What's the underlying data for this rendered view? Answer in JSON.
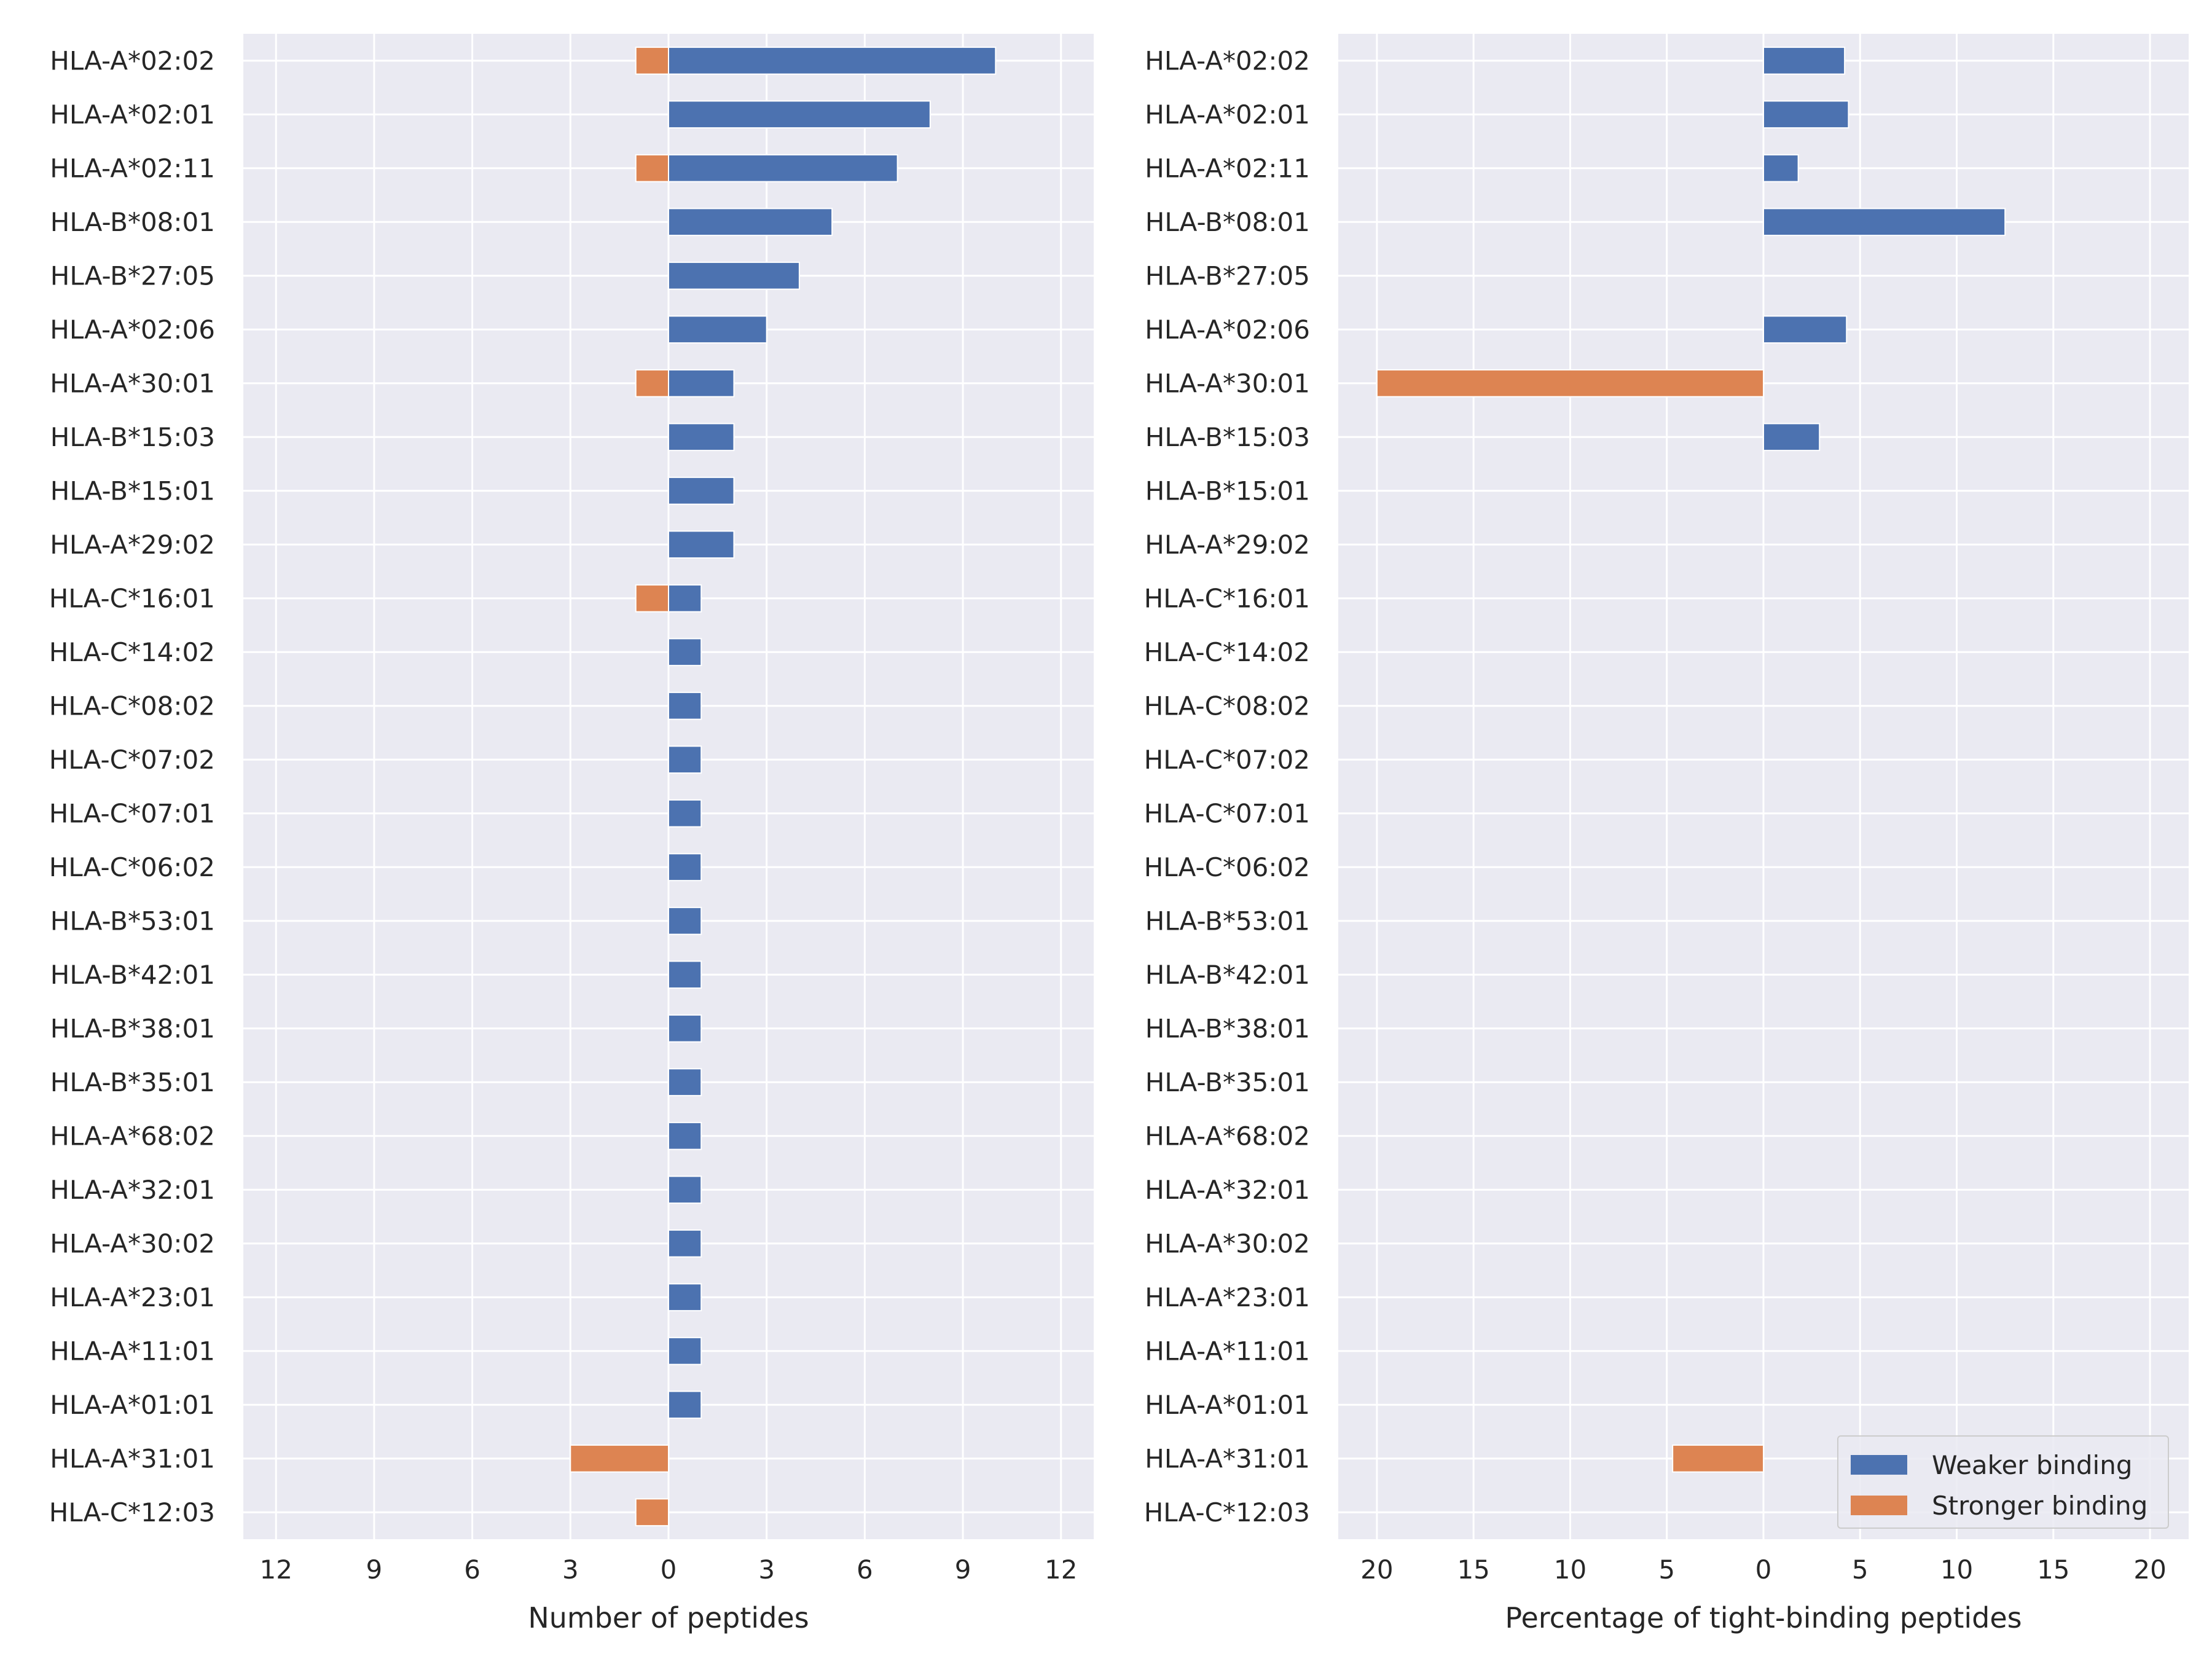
{
  "colors": {
    "weaker": "#4c72b0",
    "stronger": "#dd8452",
    "background": "#eaeaf2",
    "grid": "#ffffff"
  },
  "chart_data": [
    {
      "type": "bar",
      "orientation": "horizontal",
      "diverging": true,
      "xlabel": "Number of peptides",
      "ylabel": "",
      "title": "",
      "xlim": [
        -13,
        13
      ],
      "xticks": [
        -12,
        -9,
        -6,
        -3,
        0,
        3,
        6,
        9,
        12
      ],
      "xtick_labels": [
        "12",
        "9",
        "6",
        "3",
        "0",
        "3",
        "6",
        "9",
        "12"
      ],
      "grid": true,
      "categories": [
        "HLA-A*02:02",
        "HLA-A*02:01",
        "HLA-A*02:11",
        "HLA-B*08:01",
        "HLA-B*27:05",
        "HLA-A*02:06",
        "HLA-A*30:01",
        "HLA-B*15:03",
        "HLA-B*15:01",
        "HLA-A*29:02",
        "HLA-C*16:01",
        "HLA-C*14:02",
        "HLA-C*08:02",
        "HLA-C*07:02",
        "HLA-C*07:01",
        "HLA-C*06:02",
        "HLA-B*53:01",
        "HLA-B*42:01",
        "HLA-B*38:01",
        "HLA-B*35:01",
        "HLA-A*68:02",
        "HLA-A*32:01",
        "HLA-A*30:02",
        "HLA-A*23:01",
        "HLA-A*11:01",
        "HLA-A*01:01",
        "HLA-A*31:01",
        "HLA-C*12:03"
      ],
      "series": [
        {
          "name": "Weaker binding",
          "values": [
            10,
            8,
            7,
            5,
            4,
            3,
            2,
            2,
            2,
            2,
            1,
            1,
            1,
            1,
            1,
            1,
            1,
            1,
            1,
            1,
            1,
            1,
            1,
            1,
            1,
            1,
            0,
            0
          ]
        },
        {
          "name": "Stronger binding",
          "values": [
            -1,
            0,
            -1,
            0,
            0,
            0,
            -1,
            0,
            0,
            0,
            -1,
            0,
            0,
            0,
            0,
            0,
            0,
            0,
            0,
            0,
            0,
            0,
            0,
            0,
            0,
            0,
            -3,
            -1
          ]
        }
      ]
    },
    {
      "type": "bar",
      "orientation": "horizontal",
      "diverging": true,
      "xlabel": "Percentage of tight-binding peptides",
      "ylabel": "",
      "title": "",
      "xlim": [
        -22,
        22
      ],
      "xticks": [
        -20,
        -15,
        -10,
        -5,
        0,
        5,
        10,
        15,
        20
      ],
      "xtick_labels": [
        "20",
        "15",
        "10",
        "5",
        "0",
        "5",
        "10",
        "15",
        "20"
      ],
      "grid": true,
      "legend_position": "bottom-right",
      "categories": [
        "HLA-A*02:02",
        "HLA-A*02:01",
        "HLA-A*02:11",
        "HLA-B*08:01",
        "HLA-B*27:05",
        "HLA-A*02:06",
        "HLA-A*30:01",
        "HLA-B*15:03",
        "HLA-B*15:01",
        "HLA-A*29:02",
        "HLA-C*16:01",
        "HLA-C*14:02",
        "HLA-C*08:02",
        "HLA-C*07:02",
        "HLA-C*07:01",
        "HLA-C*06:02",
        "HLA-B*53:01",
        "HLA-B*42:01",
        "HLA-B*38:01",
        "HLA-B*35:01",
        "HLA-A*68:02",
        "HLA-A*32:01",
        "HLA-A*30:02",
        "HLA-A*23:01",
        "HLA-A*11:01",
        "HLA-A*01:01",
        "HLA-A*31:01",
        "HLA-C*12:03"
      ],
      "series": [
        {
          "name": "Weaker binding",
          "values": [
            4.2,
            4.4,
            1.8,
            12.5,
            0,
            4.3,
            0,
            2.9,
            0,
            0,
            0,
            0,
            0,
            0,
            0,
            0,
            0,
            0,
            0,
            0,
            0,
            0,
            0,
            0,
            0,
            0,
            0,
            0
          ]
        },
        {
          "name": "Stronger binding",
          "values": [
            0,
            0,
            0,
            0,
            0,
            0,
            -20,
            0,
            0,
            0,
            0,
            0,
            0,
            0,
            0,
            0,
            0,
            0,
            0,
            0,
            0,
            0,
            0,
            0,
            0,
            0,
            -4.7,
            0
          ]
        }
      ]
    }
  ],
  "legend": {
    "items": [
      "Weaker binding",
      "Stronger binding"
    ]
  }
}
